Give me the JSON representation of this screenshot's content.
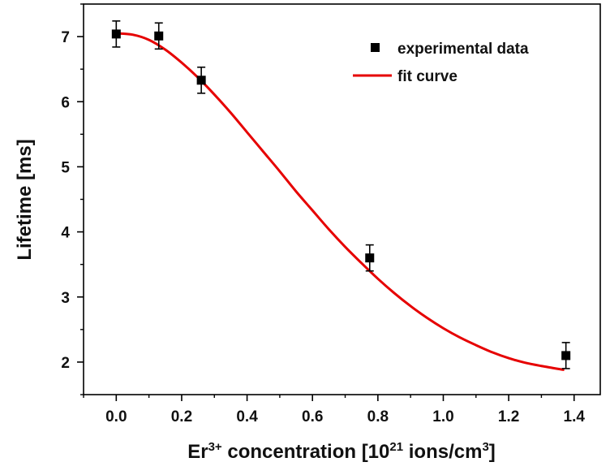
{
  "chart_data": {
    "type": "scatter",
    "xlabel": {
      "prefix": "Er",
      "sup1": "3+",
      "middle": " concentration [10",
      "sup2": "21",
      "rest": " ions/cm",
      "sup3": "3",
      "end": "]"
    },
    "ylabel": "Lifetime [ms]",
    "xlim": [
      -0.1,
      1.48
    ],
    "ylim": [
      1.5,
      7.5
    ],
    "xticks": [
      "0.0",
      "0.2",
      "0.4",
      "0.6",
      "0.8",
      "1.0",
      "1.2",
      "1.4"
    ],
    "yticks": [
      "2",
      "3",
      "4",
      "5",
      "6",
      "7"
    ],
    "legend_position": "top-right",
    "series": [
      {
        "name": "experimental data",
        "kind": "scatter",
        "color": "#000000",
        "x": [
          0.0,
          0.13,
          0.26,
          0.775,
          1.375
        ],
        "y": [
          7.04,
          7.01,
          6.33,
          3.6,
          2.1
        ],
        "yerr": [
          0.2,
          0.2,
          0.2,
          0.2,
          0.2
        ]
      },
      {
        "name": "fit curve",
        "kind": "line",
        "color": "#e60000",
        "x": [
          0.0,
          0.05,
          0.1,
          0.15,
          0.2,
          0.25,
          0.3,
          0.35,
          0.4,
          0.45,
          0.5,
          0.55,
          0.6,
          0.65,
          0.7,
          0.75,
          0.8,
          0.85,
          0.9,
          0.95,
          1.0,
          1.05,
          1.1,
          1.15,
          1.2,
          1.25,
          1.3,
          1.37
        ],
        "y": [
          7.05,
          7.03,
          6.95,
          6.8,
          6.6,
          6.37,
          6.11,
          5.83,
          5.53,
          5.23,
          4.93,
          4.62,
          4.33,
          4.04,
          3.77,
          3.52,
          3.28,
          3.06,
          2.86,
          2.68,
          2.52,
          2.38,
          2.26,
          2.15,
          2.06,
          1.99,
          1.94,
          1.88
        ]
      }
    ]
  }
}
